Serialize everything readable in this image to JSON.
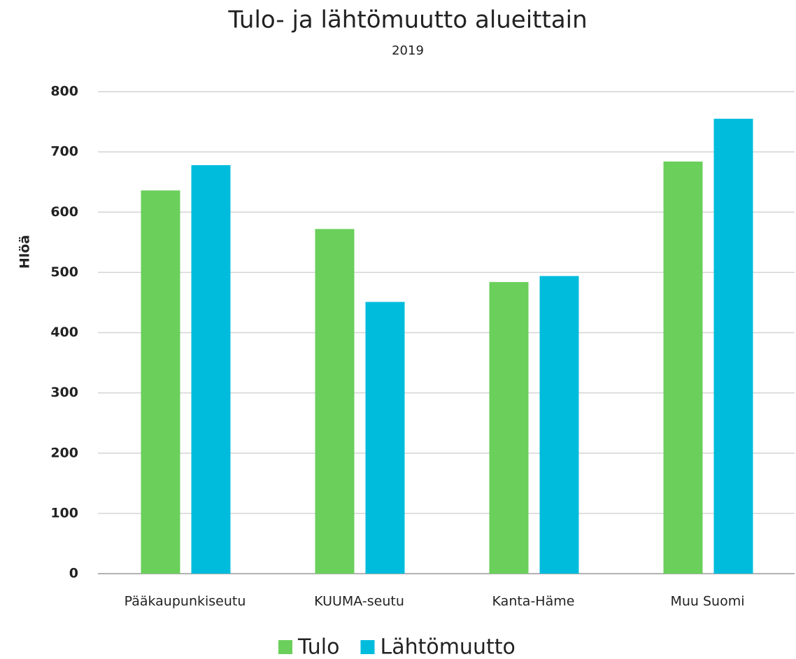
{
  "chart_data": {
    "type": "bar",
    "title": "Tulo- ja lähtömuutto alueittain",
    "subtitle": "2019",
    "y_label": "Hlöä",
    "categories": [
      "Pääkaupunkiseutu",
      "KUUMA-seutu",
      "Kanta-Häme",
      "Muu Suomi"
    ],
    "series": [
      {
        "name": "Tulo",
        "color": "#6acf5b",
        "values": [
          636,
          572,
          484,
          684
        ]
      },
      {
        "name": "Lähtömuutto",
        "color": "#00bcdc",
        "values": [
          678,
          451,
          494,
          755
        ]
      }
    ],
    "ylim": [
      0,
      800
    ],
    "yticks": [
      0,
      100,
      200,
      300,
      400,
      500,
      600,
      700,
      800
    ],
    "grid": true,
    "legend": "bottom"
  }
}
